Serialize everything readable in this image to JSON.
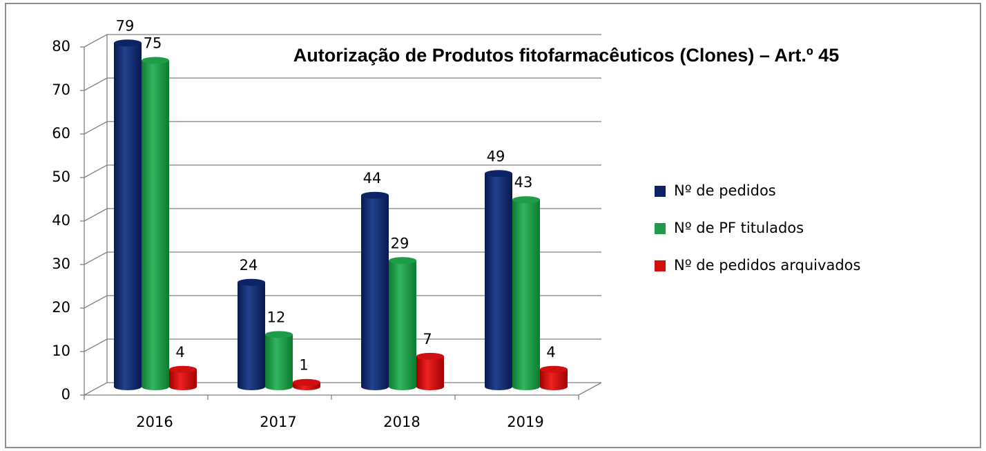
{
  "chart_data": {
    "type": "bar",
    "title": "Autorização de Produtos fitofarmacêuticos (Clones) – Art.º 45",
    "categories": [
      "2016",
      "2017",
      "2018",
      "2019"
    ],
    "series": [
      {
        "name": "Nº de pedidos",
        "color": "#0c2466",
        "values": [
          79,
          24,
          44,
          49
        ]
      },
      {
        "name": "Nº de PF titulados",
        "color": "#1e9c48",
        "values": [
          75,
          12,
          29,
          43
        ]
      },
      {
        "name": "Nº de pedidos arquivados",
        "color": "#d01010",
        "values": [
          4,
          1,
          7,
          4
        ]
      }
    ],
    "ylim": [
      0,
      80
    ],
    "yticks": [
      0,
      10,
      20,
      30,
      40,
      50,
      60,
      70,
      80
    ],
    "grid": true,
    "legend": "right"
  }
}
